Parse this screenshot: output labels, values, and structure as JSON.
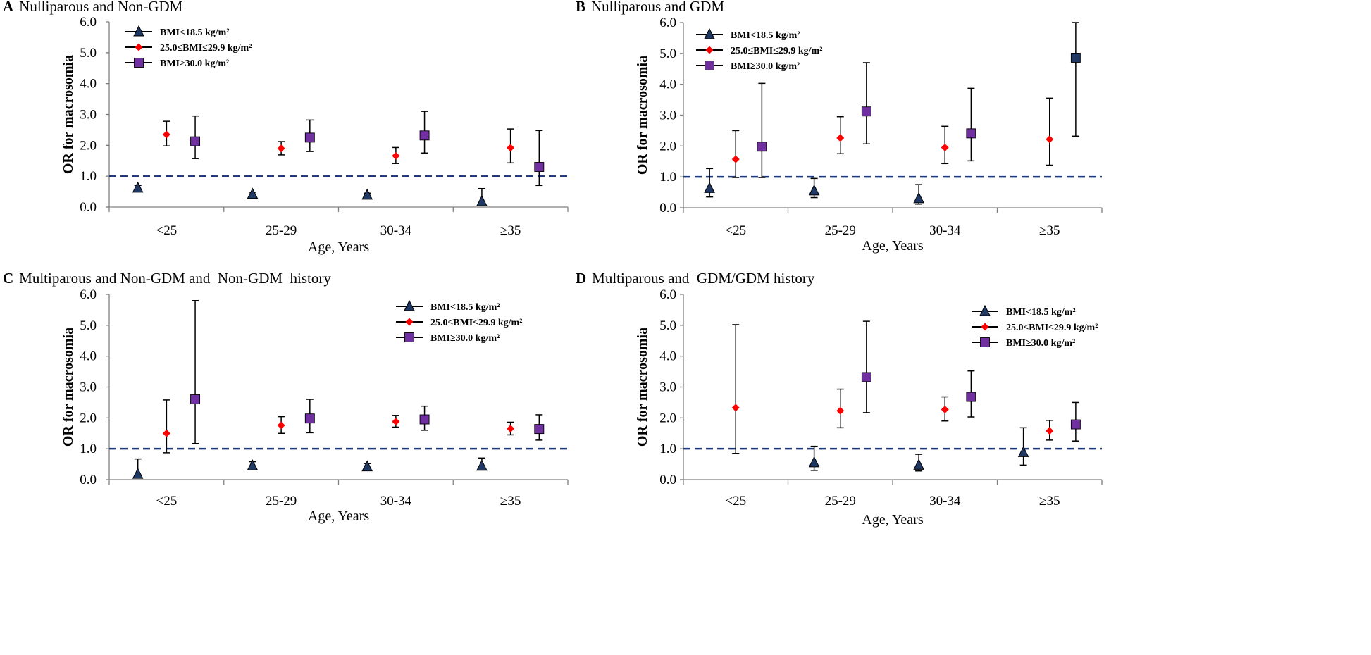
{
  "colors": {
    "triangle": "#1f3864",
    "diamond": "#ff0000",
    "square": "#7030a0",
    "square_dark": "#1f3864",
    "reference_line": "#1f3a7a"
  },
  "chart_data": [
    {
      "type": "scatter",
      "panel": "A",
      "title": "Nulliparous and Non-GDM",
      "xlabel": "Age, Years",
      "ylabel": "OR for macrosomia",
      "categories": [
        "<25",
        "25-29",
        "30-34",
        "≥35"
      ],
      "yticks": [
        "0.0",
        "1.0",
        "2.0",
        "3.0",
        "4.0",
        "5.0",
        "6.0"
      ],
      "ylim": [
        0,
        6
      ],
      "reference_line": 1.0,
      "legend_position": "top-left",
      "series": [
        {
          "name": "BMI<18.5 kg/m²",
          "marker": "triangle",
          "values": [
            0.62,
            0.42,
            0.39,
            0.18
          ],
          "lower": [
            0.57,
            0.38,
            0.35,
            0.12
          ],
          "upper": [
            0.7,
            0.48,
            0.45,
            0.6
          ]
        },
        {
          "name": "25.0≤BMI≤29.9 kg/m²",
          "marker": "diamond",
          "values": [
            2.35,
            1.9,
            1.66,
            1.92
          ],
          "lower": [
            1.98,
            1.69,
            1.41,
            1.43
          ],
          "upper": [
            2.78,
            2.12,
            1.93,
            2.53
          ]
        },
        {
          "name": "BMI≥30.0 kg/m²",
          "marker": "square",
          "values": [
            2.13,
            2.25,
            2.32,
            1.3
          ],
          "lower": [
            1.57,
            1.8,
            1.75,
            0.7
          ],
          "upper": [
            2.95,
            2.82,
            3.1,
            2.48
          ]
        }
      ]
    },
    {
      "type": "scatter",
      "panel": "B",
      "title": "Nulliparous and GDM",
      "xlabel": "Age, Years",
      "ylabel": "OR for macrosomia",
      "categories": [
        "<25",
        "25-29",
        "30-34",
        "≥35"
      ],
      "yticks": [
        "0.0",
        "1.0",
        "2.0",
        "3.0",
        "4.0",
        "5.0",
        "6.0"
      ],
      "ylim": [
        0,
        6
      ],
      "reference_line": 1.0,
      "legend_position": "top-left",
      "series": [
        {
          "name": "BMI<18.5 kg/m²",
          "marker": "triangle",
          "values": [
            0.63,
            0.55,
            0.3,
            null
          ],
          "lower": [
            0.35,
            0.33,
            0.12,
            null
          ],
          "upper": [
            1.27,
            0.95,
            0.75,
            null
          ]
        },
        {
          "name": "25.0≤BMI≤29.9 kg/m²",
          "marker": "diamond",
          "values": [
            1.57,
            2.26,
            1.95,
            2.22
          ],
          "lower": [
            0.98,
            1.75,
            1.43,
            1.38
          ],
          "upper": [
            2.5,
            2.95,
            2.64,
            3.55
          ]
        },
        {
          "name": "BMI≥30.0 kg/m²",
          "marker": "square",
          "values": [
            1.98,
            3.12,
            2.41,
            4.86
          ],
          "lower": [
            0.98,
            2.07,
            1.52,
            2.32
          ],
          "upper": [
            4.03,
            4.7,
            3.87,
            6.0
          ],
          "dark_markers": [
            false,
            false,
            false,
            true
          ]
        }
      ]
    },
    {
      "type": "scatter",
      "panel": "C",
      "title": "Multiparous and Non-GDM and  Non-GDM  history",
      "xlabel": "Age, Years",
      "ylabel": "OR for macrosomia",
      "categories": [
        "<25",
        "25-29",
        "30-34",
        "≥35"
      ],
      "yticks": [
        "0.0",
        "1.0",
        "2.0",
        "3.0",
        "4.0",
        "5.0",
        "6.0"
      ],
      "ylim": [
        0,
        6
      ],
      "reference_line": 1.0,
      "legend_position": "top-right",
      "series": [
        {
          "name": "BMI<18.5 kg/m²",
          "marker": "triangle",
          "values": [
            0.18,
            0.45,
            0.42,
            0.44
          ],
          "lower": [
            0.1,
            0.38,
            0.35,
            0.33
          ],
          "upper": [
            0.67,
            0.58,
            0.52,
            0.7
          ]
        },
        {
          "name": "25.0≤BMI≤29.9 kg/m²",
          "marker": "diamond",
          "values": [
            1.5,
            1.76,
            1.88,
            1.65
          ],
          "lower": [
            0.87,
            1.5,
            1.7,
            1.45
          ],
          "upper": [
            2.58,
            2.04,
            2.08,
            1.86
          ]
        },
        {
          "name": "BMI≥30.0 kg/m²",
          "marker": "square",
          "values": [
            2.6,
            1.98,
            1.95,
            1.64
          ],
          "lower": [
            1.17,
            1.52,
            1.6,
            1.28
          ],
          "upper": [
            5.8,
            2.6,
            2.38,
            2.1
          ]
        }
      ]
    },
    {
      "type": "scatter",
      "panel": "D",
      "title": "Multiparous and  GDM/GDM history",
      "xlabel": "Age, Years",
      "ylabel": "OR for macrosomia",
      "categories": [
        "<25",
        "25-29",
        "30-34",
        "≥35"
      ],
      "yticks": [
        "0.0",
        "1.0",
        "2.0",
        "3.0",
        "4.0",
        "5.0",
        "6.0"
      ],
      "ylim": [
        0,
        6
      ],
      "reference_line": 1.0,
      "legend_position": "top-right",
      "series": [
        {
          "name": "BMI<18.5 kg/m²",
          "marker": "triangle",
          "values": [
            null,
            0.55,
            0.47,
            0.88
          ],
          "lower": [
            null,
            0.3,
            0.28,
            0.47
          ],
          "upper": [
            null,
            1.08,
            0.82,
            1.68
          ]
        },
        {
          "name": "25.0≤BMI≤29.9 kg/m²",
          "marker": "diamond",
          "values": [
            2.33,
            2.23,
            2.27,
            1.58
          ],
          "lower": [
            0.85,
            1.68,
            1.9,
            1.28
          ],
          "upper": [
            5.02,
            2.93,
            2.68,
            1.92
          ]
        },
        {
          "name": "BMI≥30.0 kg/m²",
          "marker": "square",
          "values": [
            null,
            3.32,
            2.68,
            1.79
          ],
          "lower": [
            null,
            2.17,
            2.03,
            1.25
          ],
          "upper": [
            null,
            5.13,
            3.52,
            2.5
          ]
        }
      ]
    }
  ]
}
